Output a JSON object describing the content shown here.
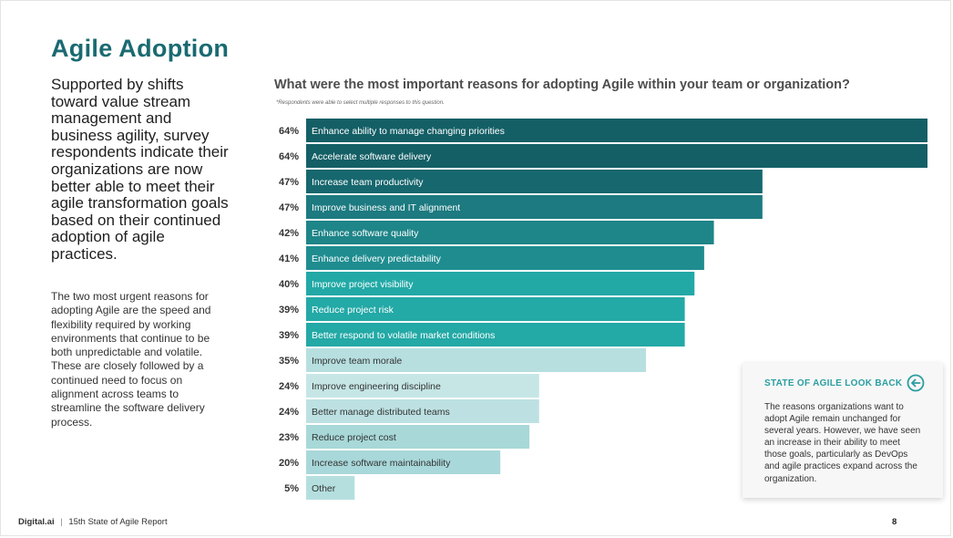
{
  "left": {
    "title": "Agile Adoption",
    "lead": "Supported by shifts toward value stream management and business agility, survey respondents indicate their organizations are now better able to meet their agile transformation goals based on their continued adoption of agile practices.",
    "body": "The two most urgent reasons for adopting Agile are the speed and flexibility required by working environments that continue to be both unpredictable and volatile. These are closely followed by a continued need to focus on alignment across teams to streamline the software delivery process."
  },
  "chart_data": {
    "type": "bar",
    "orientation": "horizontal",
    "title": "What were the most important reasons for adopting Agile within your team or organization?",
    "note": "*Respondents were able to select multiple responses to this question.",
    "value_suffix": "%",
    "xlim": [
      0,
      64
    ],
    "categories": [
      "Enhance ability to manage changing priorities",
      "Accelerate software delivery",
      "Increase team productivity",
      "Improve business and IT alignment",
      "Enhance software quality",
      "Enhance delivery predictability",
      "Improve project visibility",
      "Reduce project risk",
      "Better respond to volatile market conditions",
      "Improve team morale",
      "Improve engineering discipline",
      "Better manage distributed teams",
      "Reduce project cost",
      "Increase software maintainability",
      "Other"
    ],
    "values": [
      64,
      64,
      47,
      47,
      42,
      41,
      40,
      39,
      39,
      35,
      24,
      24,
      23,
      20,
      5
    ],
    "colors": [
      "#145f66",
      "#145f66",
      "#17676e",
      "#1c7a80",
      "#1e8588",
      "#1f8d90",
      "#22a9a6",
      "#23a9a6",
      "#23a9a6",
      "#b7dfe0",
      "#c6e6e6",
      "#bde1e2",
      "#a8d8d8",
      "#a9d8da",
      "#b5dfdf"
    ],
    "label_colors": [
      "#ffffff",
      "#ffffff",
      "#ffffff",
      "#ffffff",
      "#ffffff",
      "#ffffff",
      "#ffffff",
      "#ffffff",
      "#ffffff",
      "#333333",
      "#333333",
      "#333333",
      "#333333",
      "#333333",
      "#333333"
    ]
  },
  "lookback": {
    "title": "STATE OF AGILE LOOK BACK",
    "text": "The reasons organizations want to adopt Agile remain unchanged for several years. However, we have seen an increase in their ability to meet those goals, particularly as DevOps and agile practices expand across the organization.",
    "accent": "#2a9ea1"
  },
  "footer": {
    "brand": "Digital.ai",
    "separator": "|",
    "report": "15th State of Agile Report",
    "page": "8"
  }
}
